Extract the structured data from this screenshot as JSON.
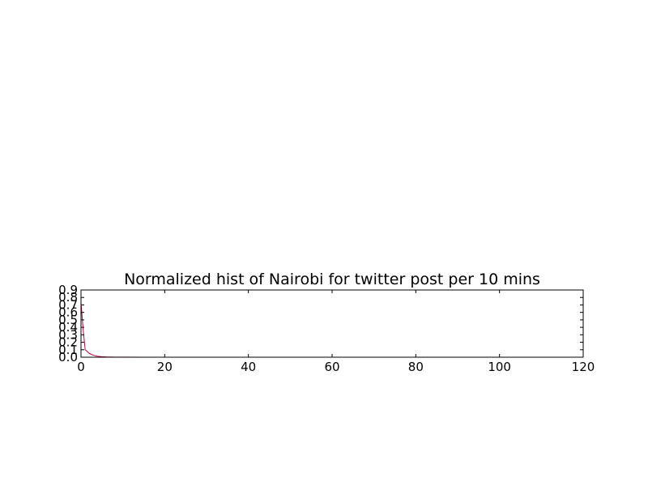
{
  "chart_data": {
    "type": "line",
    "title": "Normalized hist of Nairobi for twitter post per 10 mins",
    "xlabel": "",
    "ylabel": "",
    "xlim": [
      0,
      120
    ],
    "ylim": [
      0,
      0.9
    ],
    "x_ticks": [
      0,
      20,
      40,
      60,
      80,
      100,
      120
    ],
    "y_ticks": [
      0.0,
      0.1,
      0.2,
      0.3,
      0.4,
      0.5,
      0.6,
      0.7,
      0.8,
      0.9
    ],
    "x_tick_labels": [
      "0",
      "20",
      "40",
      "60",
      "80",
      "100",
      "120"
    ],
    "y_tick_labels": [
      "0.0",
      "0.1",
      "0.2",
      "0.3",
      "0.4",
      "0.5",
      "0.6",
      "0.7",
      "0.8",
      "0.9"
    ],
    "grid": false,
    "series": [
      {
        "color": "#c00040",
        "x": [
          0,
          0.5,
          1,
          2,
          3,
          4,
          5,
          6,
          8,
          10,
          15,
          20,
          30,
          40,
          60,
          80,
          100,
          115
        ],
        "y": [
          0.73,
          0.38,
          0.1,
          0.05,
          0.025,
          0.012,
          0.007,
          0.004,
          0.002,
          0.001,
          0.0005,
          0.0003,
          0.0002,
          0.0001,
          0.0001,
          0.0001,
          0.0001,
          0.0001
        ]
      }
    ]
  }
}
